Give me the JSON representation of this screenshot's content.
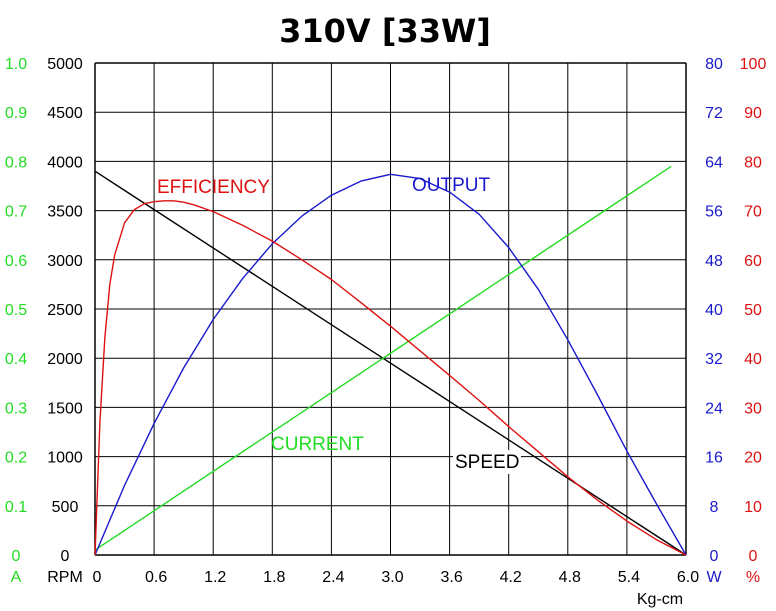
{
  "chart_data": {
    "type": "line",
    "title": "310V [33W]",
    "grid": true,
    "x": {
      "unit": "Kg-cm",
      "ticks": [
        "0",
        "0.6",
        "1.2",
        "1.8",
        "2.4",
        "3.0",
        "3.6",
        "4.2",
        "4.8",
        "5.4",
        "6.0"
      ],
      "range": [
        0,
        6.0
      ]
    },
    "axes": {
      "current": {
        "unit": "A",
        "color": "#22dd22",
        "ticks": [
          "0",
          "0.1",
          "0.2",
          "0.3",
          "0.4",
          "0.5",
          "0.6",
          "0.7",
          "0.8",
          "0.9",
          "1.0"
        ],
        "range": [
          0,
          1.0
        ]
      },
      "speed": {
        "unit": "RPM",
        "color": "#000000",
        "ticks": [
          "0",
          "500",
          "1000",
          "1500",
          "2000",
          "2500",
          "3000",
          "3500",
          "4000",
          "4500",
          "5000"
        ],
        "range": [
          0,
          5000
        ]
      },
      "output": {
        "unit": "W",
        "color": "#1a1acc",
        "ticks": [
          "0",
          "8",
          "16",
          "24",
          "32",
          "40",
          "48",
          "56",
          "64",
          "72",
          "80"
        ],
        "range": [
          0,
          80
        ]
      },
      "efficiency": {
        "unit": "%",
        "color": "#dd1111",
        "ticks": [
          "0",
          "10",
          "20",
          "30",
          "40",
          "50",
          "60",
          "70",
          "80",
          "90",
          "100"
        ],
        "range": [
          0,
          100
        ]
      }
    },
    "series": [
      {
        "name": "SPEED",
        "axis": "speed",
        "color": "#000000",
        "x": [
          0,
          6.0
        ],
        "y": [
          3900,
          0
        ]
      },
      {
        "name": "CURRENT",
        "axis": "current",
        "color": "#22dd22",
        "x": [
          0,
          5.85
        ],
        "y": [
          0.01,
          0.79
        ]
      },
      {
        "name": "OUTPUT",
        "axis": "output",
        "color": "#1a1acc",
        "x": [
          0,
          0.3,
          0.6,
          0.9,
          1.2,
          1.5,
          1.8,
          2.1,
          2.4,
          2.7,
          3.0,
          3.3,
          3.6,
          3.9,
          4.2,
          4.5,
          4.8,
          5.1,
          5.4,
          5.7,
          6.0
        ],
        "y": [
          0,
          11.3,
          21.4,
          30.4,
          38.3,
          45.0,
          50.6,
          55.1,
          58.5,
          60.8,
          61.9,
          61.2,
          59.0,
          55.4,
          50.0,
          43.2,
          35.0,
          26.1,
          16.9,
          8.3,
          0
        ]
      },
      {
        "name": "EFFICIENCY",
        "axis": "efficiency",
        "color": "#dd1111",
        "x": [
          0,
          0.05,
          0.1,
          0.15,
          0.2,
          0.3,
          0.4,
          0.5,
          0.6,
          0.7,
          0.8,
          0.9,
          1.0,
          1.2,
          1.5,
          1.8,
          2.1,
          2.4,
          2.7,
          3.0,
          3.3,
          3.6,
          3.9,
          4.2,
          4.5,
          4.8,
          5.1,
          5.4,
          5.7,
          6.0
        ],
        "y": [
          0,
          27,
          44,
          55,
          61,
          67.5,
          70.2,
          71.4,
          71.8,
          72.0,
          72.0,
          71.7,
          71.2,
          69.8,
          67.0,
          63.8,
          60.0,
          56.0,
          51.3,
          46.5,
          41.5,
          36.5,
          31.4,
          26.1,
          21.0,
          15.9,
          11.2,
          6.9,
          3.1,
          0
        ]
      }
    ]
  }
}
